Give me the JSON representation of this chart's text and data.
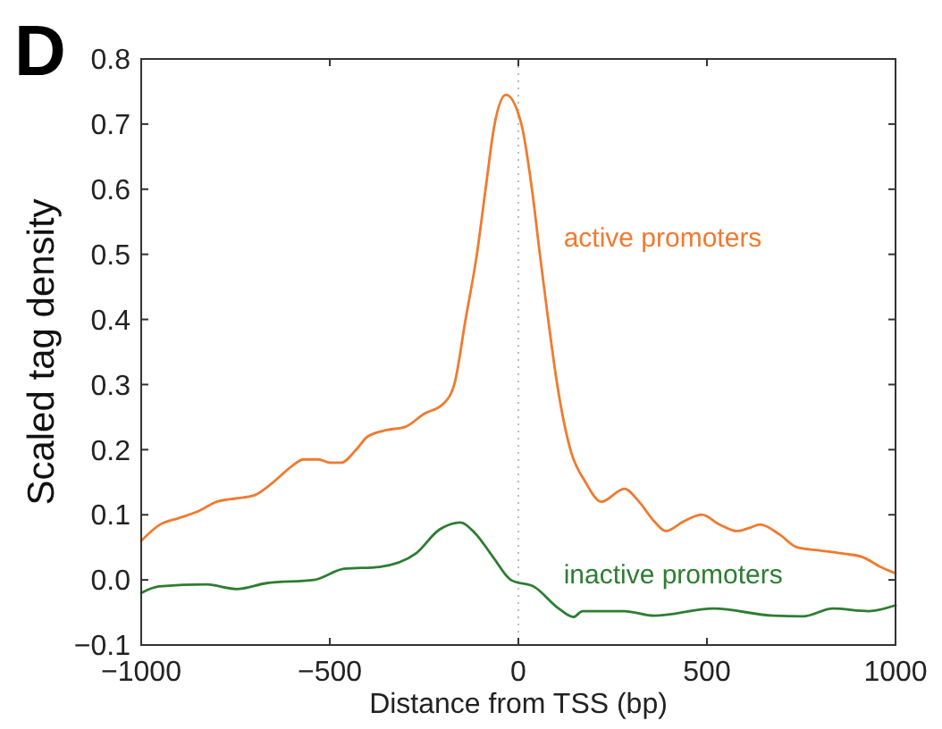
{
  "chart_data": {
    "type": "line",
    "title": "D",
    "xlabel": "Distance from TSS (bp)",
    "ylabel": "Scaled tag density",
    "xlim": [
      -1000,
      1000
    ],
    "xticks": [
      {
        "value": -1000,
        "label": "−1000"
      },
      {
        "value": -500,
        "label": "−500"
      },
      0,
      500,
      1000
    ],
    "ylim": [
      -0.1,
      0.8
    ],
    "yticks": [
      {
        "value": -0.1,
        "label": "−0.1"
      },
      {
        "value": 0,
        "label": "0.0"
      },
      0.1,
      0.2,
      0.3,
      0.4,
      0.5,
      0.6,
      0.7,
      0.8
    ],
    "grid": false,
    "marker": "none",
    "line_style": "solid",
    "ref_lines": [
      {
        "axis": "x",
        "value": 0,
        "color": "#bbbbbb",
        "line_style": "dotted"
      }
    ],
    "series": [
      {
        "name": "active promoters",
        "color": "#f07a30",
        "x": [
          -1000,
          -950,
          -900,
          -850,
          -800,
          -750,
          -700,
          -650,
          -600,
          -570,
          -530,
          -500,
          -470,
          -430,
          -400,
          -350,
          -300,
          -250,
          -200,
          -170,
          -140,
          -110,
          -87,
          -63,
          -33,
          8,
          36,
          57,
          79,
          103,
          138,
          178,
          220,
          281,
          320,
          360,
          391,
          439,
          486,
          534,
          581,
          613,
          641,
          692,
          739,
          802,
          865,
          913,
          960,
          1000
        ],
        "values": [
          0.06,
          0.085,
          0.095,
          0.105,
          0.12,
          0.125,
          0.13,
          0.15,
          0.175,
          0.185,
          0.185,
          0.18,
          0.18,
          0.2,
          0.22,
          0.23,
          0.235,
          0.255,
          0.27,
          0.3,
          0.4,
          0.5,
          0.6,
          0.7,
          0.745,
          0.7,
          0.6,
          0.5,
          0.4,
          0.3,
          0.2,
          0.15,
          0.12,
          0.14,
          0.12,
          0.09,
          0.075,
          0.09,
          0.1,
          0.085,
          0.075,
          0.08,
          0.085,
          0.07,
          0.05,
          0.045,
          0.04,
          0.035,
          0.02,
          0.01
        ]
      },
      {
        "name": "inactive promoters",
        "color": "#2e7d32",
        "x": [
          -1000,
          -953,
          -826,
          -747,
          -668,
          -542,
          -462,
          -368,
          -273,
          -210,
          -154,
          -115,
          -67,
          -20,
          43,
          107,
          146,
          170,
          281,
          360,
          518,
          676,
          755,
          834,
          929,
          1000
        ],
        "values": [
          -0.02,
          -0.01,
          -0.007,
          -0.014,
          -0.005,
          0.0,
          0.017,
          0.02,
          0.04,
          0.077,
          0.088,
          0.072,
          0.035,
          0.0,
          -0.011,
          -0.044,
          -0.057,
          -0.048,
          -0.048,
          -0.055,
          -0.044,
          -0.055,
          -0.056,
          -0.044,
          -0.048,
          -0.039
        ]
      }
    ]
  }
}
